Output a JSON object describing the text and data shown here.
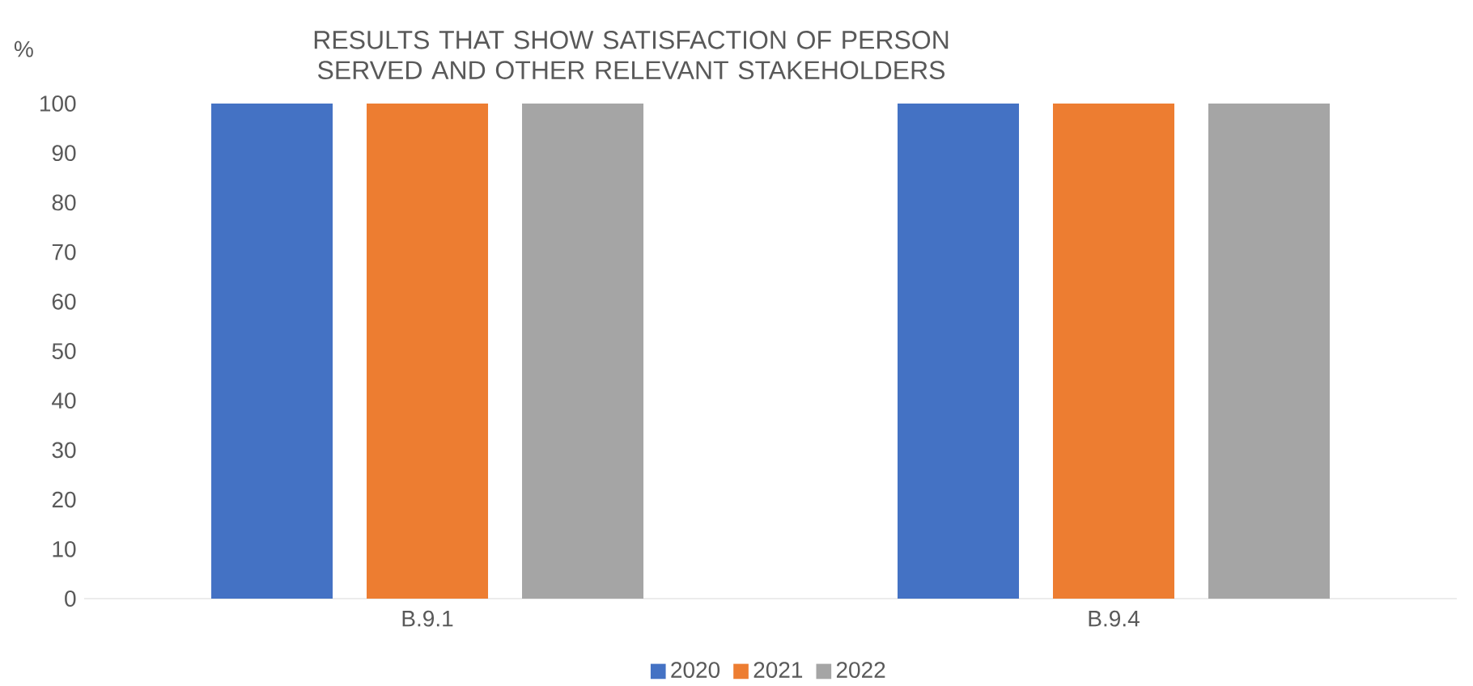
{
  "chart_data": {
    "type": "bar",
    "title": "RESULTS THAT  SHOW  SATISFACTION OF PERSON SERVED AND OTHER RELEVANT STAKEHOLDERS",
    "ylabel": "%",
    "categories": [
      "B.9.1",
      "B.9.4"
    ],
    "series": [
      {
        "name": "2020",
        "color": "#4472c4",
        "values": [
          100,
          100
        ]
      },
      {
        "name": "2021",
        "color": "#ed7d31",
        "values": [
          100,
          100
        ]
      },
      {
        "name": "2022",
        "color": "#a5a5a5",
        "values": [
          100,
          100
        ]
      }
    ],
    "ylim": [
      0,
      100
    ],
    "yticks": [
      0,
      10,
      20,
      30,
      40,
      50,
      60,
      70,
      80,
      90,
      100
    ],
    "grid": false,
    "legend": "bottom"
  }
}
